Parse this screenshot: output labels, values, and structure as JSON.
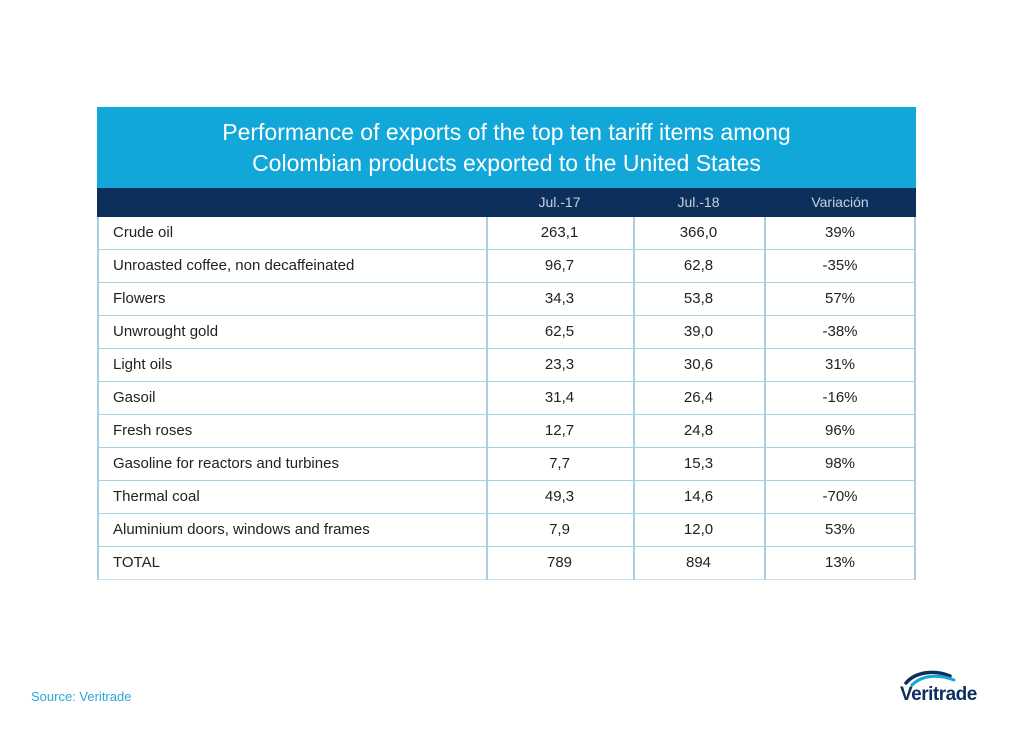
{
  "chart_data": {
    "type": "table",
    "title_lines": [
      "Performance of exports of the top ten tariff items among",
      "Colombian products exported to the United States"
    ],
    "columns": [
      "",
      "Jul.-17",
      "Jul.-18",
      "Variación"
    ],
    "rows": [
      {
        "label": "Crude oil",
        "jul17": "263,1",
        "jul18": "366,0",
        "variation": "39%"
      },
      {
        "label": "Unroasted coffee, non decaffeinated",
        "jul17": "96,7",
        "jul18": "62,8",
        "variation": "-35%"
      },
      {
        "label": "Flowers",
        "jul17": "34,3",
        "jul18": "53,8",
        "variation": "57%"
      },
      {
        "label": "Unwrought gold",
        "jul17": "62,5",
        "jul18": "39,0",
        "variation": "-38%"
      },
      {
        "label": "Light oils",
        "jul17": "23,3",
        "jul18": "30,6",
        "variation": "31%"
      },
      {
        "label": "Gasoil",
        "jul17": "31,4",
        "jul18": "26,4",
        "variation": "-16%"
      },
      {
        "label": "Fresh roses",
        "jul17": "12,7",
        "jul18": "24,8",
        "variation": "96%"
      },
      {
        "label": "Gasoline for reactors and turbines",
        "jul17": "7,7",
        "jul18": "15,3",
        "variation": "98%"
      },
      {
        "label": "Thermal coal",
        "jul17": "49,3",
        "jul18": "14,6",
        "variation": "-70%"
      },
      {
        "label": "Aluminium doors, windows and frames",
        "jul17": "7,9",
        "jul18": "12,0",
        "variation": "53%"
      },
      {
        "label": "TOTAL",
        "jul17": "789",
        "jul18": "894",
        "variation": "13%"
      }
    ]
  },
  "footer": {
    "source": "Source: Veritrade"
  },
  "logo": {
    "text": "Veritrade"
  },
  "colors": {
    "title_background": "#12a7d9",
    "header_background": "#0d2f5b",
    "grid_lines": "#a9cfe3",
    "source_text": "#2aa8d6"
  }
}
